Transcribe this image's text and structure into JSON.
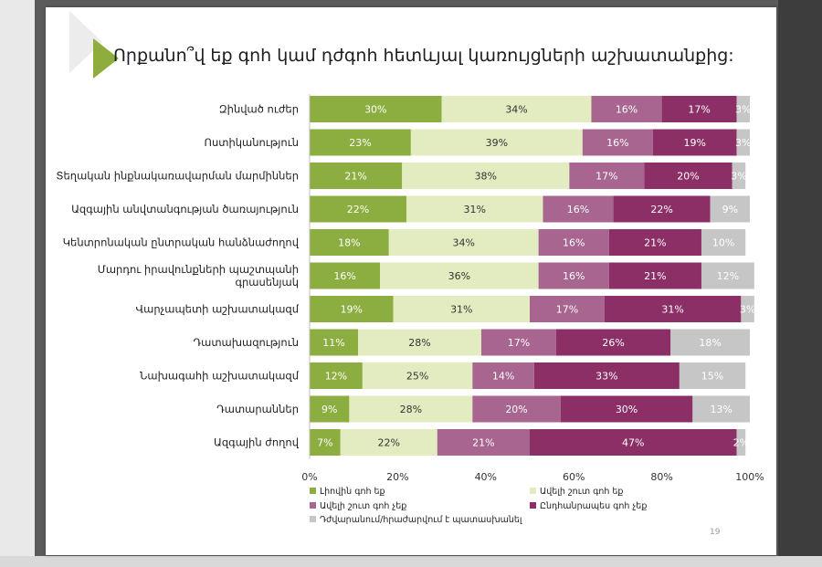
{
  "page_number": "19",
  "chart_data": {
    "type": "bar",
    "orientation": "horizontal",
    "stacked": true,
    "title": "Որքանո՞վ եք գոհ կամ դժգոհ հետևյալ կառույցների աշխատանքից:",
    "categories": [
      "Զինված ուժեր",
      "Ոստիկանություն",
      "Տեղական ինքնակառավարման մարմիններ",
      "Ազգային անվտանգության ծառայություն",
      "Կենտրոնական ընտրական հանձնաժողով",
      "Մարդու իրավունքների պաշտպանի գրասենյակ",
      "Վարչապետի աշխատակազմ",
      "Դատախազություն",
      "Նախագահի աշխատակազմ",
      "Դատարաններ",
      "Ազգային ժողով"
    ],
    "series": [
      {
        "name": "Լիովին գոհ եք",
        "color": "#8cae40",
        "label_color": "#ffffff",
        "values": [
          30,
          23,
          21,
          22,
          18,
          16,
          19,
          11,
          12,
          9,
          7
        ]
      },
      {
        "name": "Ավելի շուտ գոհ եք",
        "color": "#e3ecc1",
        "label_color": "#333333",
        "values": [
          34,
          39,
          38,
          31,
          34,
          36,
          31,
          28,
          25,
          28,
          22
        ]
      },
      {
        "name": "Ավելի շուտ գոհ չեք",
        "color": "#a86590",
        "label_color": "#ffffff",
        "values": [
          16,
          16,
          17,
          16,
          16,
          16,
          17,
          17,
          14,
          20,
          21
        ]
      },
      {
        "name": "Ընդհանրապես գոհ չեք",
        "color": "#8b2f66",
        "label_color": "#ffffff",
        "values": [
          17,
          19,
          20,
          22,
          21,
          21,
          31,
          26,
          33,
          30,
          47
        ]
      },
      {
        "name": "Դժվարանում/հրաժարվում է պատասխանել",
        "color": "#c6c6c6",
        "label_color": "#ffffff",
        "values": [
          3,
          3,
          3,
          9,
          10,
          12,
          3,
          18,
          15,
          13,
          2
        ]
      }
    ],
    "value_suffix": "%",
    "xlim": [
      0,
      100
    ],
    "xticks": [
      "0%",
      "20%",
      "40%",
      "60%",
      "80%",
      "100%"
    ],
    "grid": false,
    "legend_position": "bottom"
  }
}
